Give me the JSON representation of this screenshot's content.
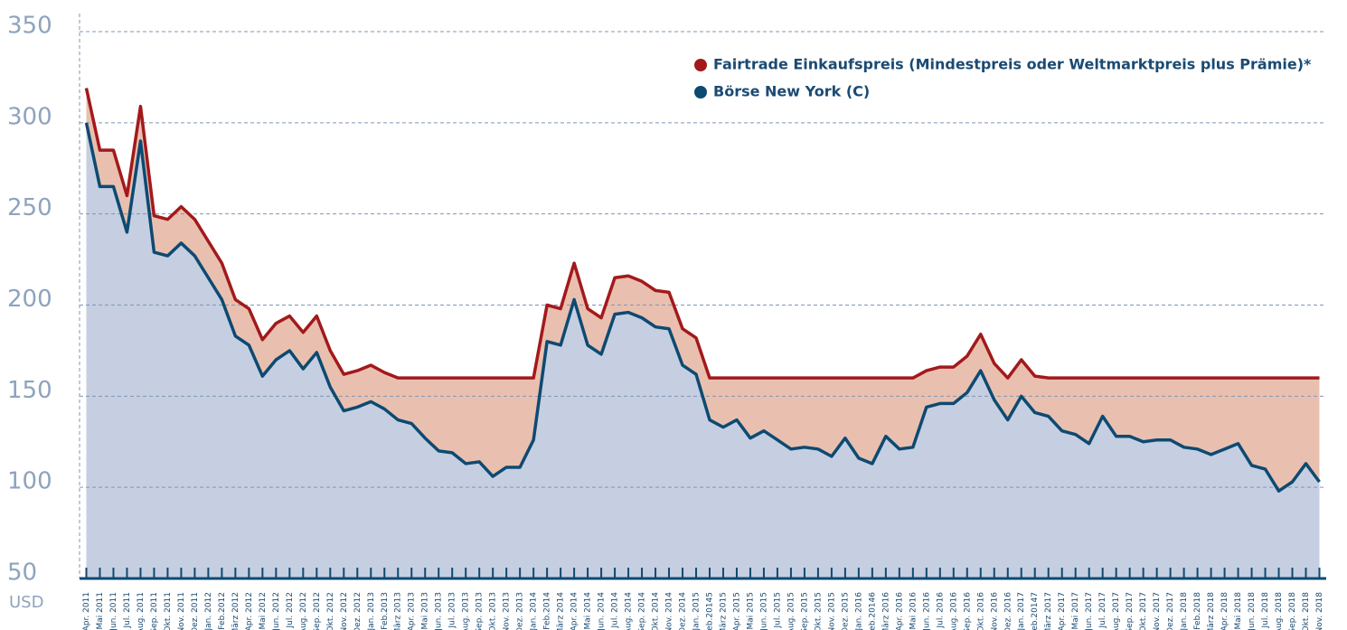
{
  "chart_data": {
    "type": "area",
    "y_label": "USD",
    "categories": [
      "Apr. 2011",
      "Mai 2011",
      "Jun. 2011",
      "Jul. 2011",
      "Aug. 2011",
      "Sep. 2011",
      "Okt. 2011",
      "Nov. 2011",
      "Dez. 2011",
      "Jan. 2012",
      "Feb.2012",
      "März 2012",
      "Apr. 2012",
      "Mai 2012",
      "Jun. 2012",
      "Jul. 2012",
      "Aug. 2012",
      "Sep. 2012",
      "Okt. 2012",
      "Nov. 2012",
      "Dez. 2012",
      "Jan. 2013",
      "Feb.2013",
      "März 2013",
      "Apr. 2013",
      "Mai 2013",
      "Jun. 2013",
      "Jul. 2013",
      "Aug. 2013",
      "Sep. 2013",
      "Okt. 2013",
      "Nov. 2013",
      "Dez. 2013",
      "Jan. 2014",
      "Feb.2014",
      "März 2014",
      "Apr. 2014",
      "Mai 2014",
      "Jun. 2014",
      "Jul. 2014",
      "Aug. 2014",
      "Sep. 2014",
      "Okt. 2014",
      "Nov. 2014",
      "Dez. 2014",
      "Jan. 2015",
      "Feb.20145",
      "März 2015",
      "Apr. 2015",
      "Mai 2015",
      "Jun. 2015",
      "Jul. 2015",
      "Aug. 2015",
      "Sep. 2015",
      "Okt. 2015",
      "Nov. 2015",
      "Dez. 2015",
      "Jan. 2016",
      "Feb.20146",
      "März 2016",
      "Apr. 2016",
      "Mai 2016",
      "Jun. 2016",
      "Jul. 2016",
      "Aug. 2016",
      "Sep. 2016",
      "Okt. 2016",
      "Nov. 2016",
      "Dez. 2016",
      "Jan. 2017",
      "Feb.20147",
      "März 2017",
      "Apr. 2017",
      "Mai 2017",
      "Jun. 2017",
      "Jul. 2017",
      "Aug. 2017",
      "Sep. 2017",
      "Okt. 2017",
      "Nov. 2017",
      "Dez. 2017",
      "Jan. 2018",
      "Feb.2018",
      "März 2018",
      "Apr. 2018",
      "Mai 2018",
      "Jun. 2018",
      "Jul. 2018",
      "Aug. 2018",
      "Sep. 2018",
      "Okt. 2018",
      "Nov. 2018"
    ],
    "series": [
      {
        "name": "Fairtrade Einkaufspreis (Mindestpreis oder Weltmarktpreis plus Prämie)*",
        "color": "#a3191b",
        "fill": "#e9c0b0",
        "values": [
          319,
          285,
          285,
          260,
          309,
          249,
          247,
          254,
          247,
          235,
          223,
          203,
          198,
          181,
          190,
          194,
          185,
          194,
          175,
          162,
          164,
          167,
          163,
          160,
          160,
          160,
          160,
          160,
          160,
          160,
          160,
          160,
          160,
          160,
          200,
          198,
          223,
          198,
          193,
          215,
          216,
          213,
          208,
          207,
          187,
          182,
          160,
          160,
          160,
          160,
          160,
          160,
          160,
          160,
          160,
          160,
          160,
          160,
          160,
          160,
          160,
          160,
          164,
          166,
          166,
          172,
          184,
          168,
          160,
          170,
          161,
          160,
          160,
          160,
          160,
          160,
          160,
          160,
          160,
          160,
          160,
          160,
          160,
          160,
          160,
          160,
          160,
          160,
          160,
          160,
          160,
          160
        ]
      },
      {
        "name": "Börse New York (C)",
        "color": "#0d4a72",
        "fill": "#c5cfe1",
        "values": [
          300,
          265,
          265,
          240,
          290,
          229,
          227,
          234,
          227,
          215,
          203,
          183,
          178,
          161,
          170,
          175,
          165,
          174,
          155,
          142,
          144,
          147,
          143,
          137,
          135,
          127,
          120,
          119,
          113,
          114,
          106,
          111,
          111,
          126,
          180,
          178,
          203,
          178,
          173,
          195,
          196,
          193,
          188,
          187,
          167,
          162,
          137,
          133,
          137,
          127,
          131,
          126,
          121,
          122,
          121,
          117,
          127,
          116,
          113,
          128,
          121,
          122,
          144,
          146,
          146,
          152,
          164,
          148,
          137,
          150,
          141,
          139,
          131,
          129,
          124,
          139,
          128,
          128,
          125,
          126,
          126,
          122,
          121,
          118,
          121,
          124,
          112,
          110,
          98,
          103,
          113,
          103
        ]
      }
    ],
    "ylim": [
      50,
      350
    ],
    "yticks": [
      50,
      100,
      150,
      200,
      250,
      300,
      350
    ],
    "grid": true
  }
}
